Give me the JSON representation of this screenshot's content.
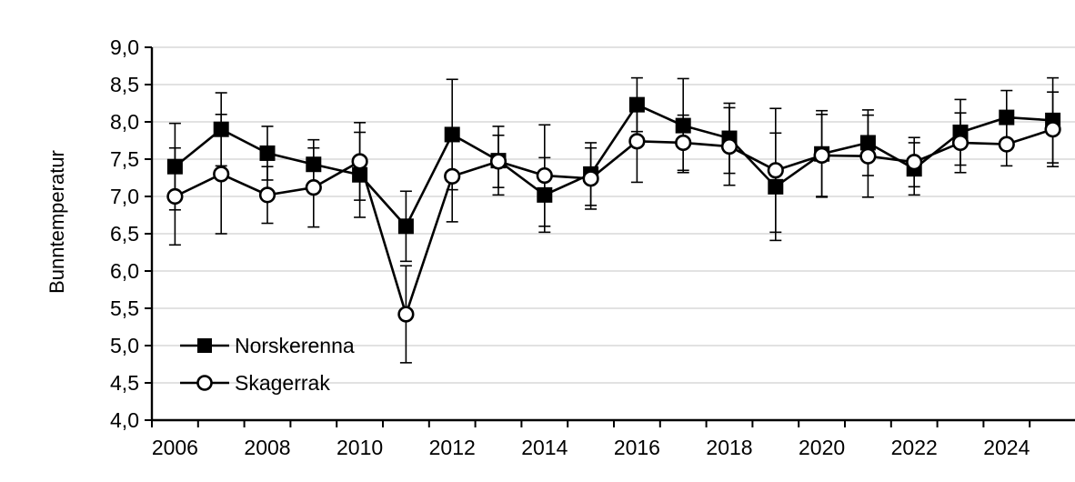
{
  "chart_data": {
    "type": "line",
    "title": "",
    "xlabel": "",
    "ylabel": "Bunntemperatur",
    "ylim": [
      4.0,
      9.0
    ],
    "y_tick_step": 0.5,
    "y_tick_labels": [
      "4,0",
      "4,5",
      "5,0",
      "5,5",
      "6,0",
      "6,5",
      "7,0",
      "7,5",
      "8,0",
      "8,5",
      "9,0"
    ],
    "x": [
      2006,
      2007,
      2008,
      2009,
      2010,
      2011,
      2012,
      2013,
      2014,
      2015,
      2016,
      2017,
      2018,
      2019,
      2020,
      2021,
      2022,
      2023,
      2024,
      2025
    ],
    "x_tick_labels": [
      "2006",
      "2008",
      "2010",
      "2012",
      "2014",
      "2016",
      "2018",
      "2020",
      "2022",
      "2024"
    ],
    "grid": "horizontal",
    "legend_position": "inside-lower-left",
    "decimal_separator": ",",
    "series": [
      {
        "name": "Norskerenna",
        "marker": "filled-square",
        "color": "#000000",
        "values": [
          7.4,
          7.9,
          7.58,
          7.43,
          7.29,
          6.6,
          7.83,
          7.48,
          7.02,
          7.3,
          8.23,
          7.95,
          7.78,
          7.13,
          7.57,
          7.72,
          7.37,
          7.86,
          8.06,
          8.02
        ],
        "errors": [
          0.58,
          0.49,
          0.36,
          0.33,
          0.57,
          0.47,
          0.74,
          0.46,
          0.5,
          0.42,
          0.36,
          0.63,
          0.47,
          0.72,
          0.58,
          0.44,
          0.35,
          0.44,
          0.36,
          0.57
        ]
      },
      {
        "name": "Skagerrak",
        "marker": "open-circle",
        "color": "#000000",
        "values": [
          7.0,
          7.3,
          7.02,
          7.12,
          7.47,
          5.42,
          7.27,
          7.47,
          7.28,
          7.24,
          7.74,
          7.72,
          7.67,
          7.35,
          7.55,
          7.54,
          7.46,
          7.72,
          7.7,
          7.9
        ],
        "errors": [
          0.65,
          0.8,
          0.38,
          0.53,
          0.52,
          0.65,
          0.61,
          0.35,
          0.68,
          0.41,
          0.55,
          0.37,
          0.52,
          0.83,
          0.55,
          0.55,
          0.33,
          0.4,
          0.29,
          0.5
        ]
      }
    ]
  },
  "colors": {
    "background": "#ffffff",
    "gridline": "#d9d9d9",
    "axis": "#000000",
    "text": "#000000"
  }
}
